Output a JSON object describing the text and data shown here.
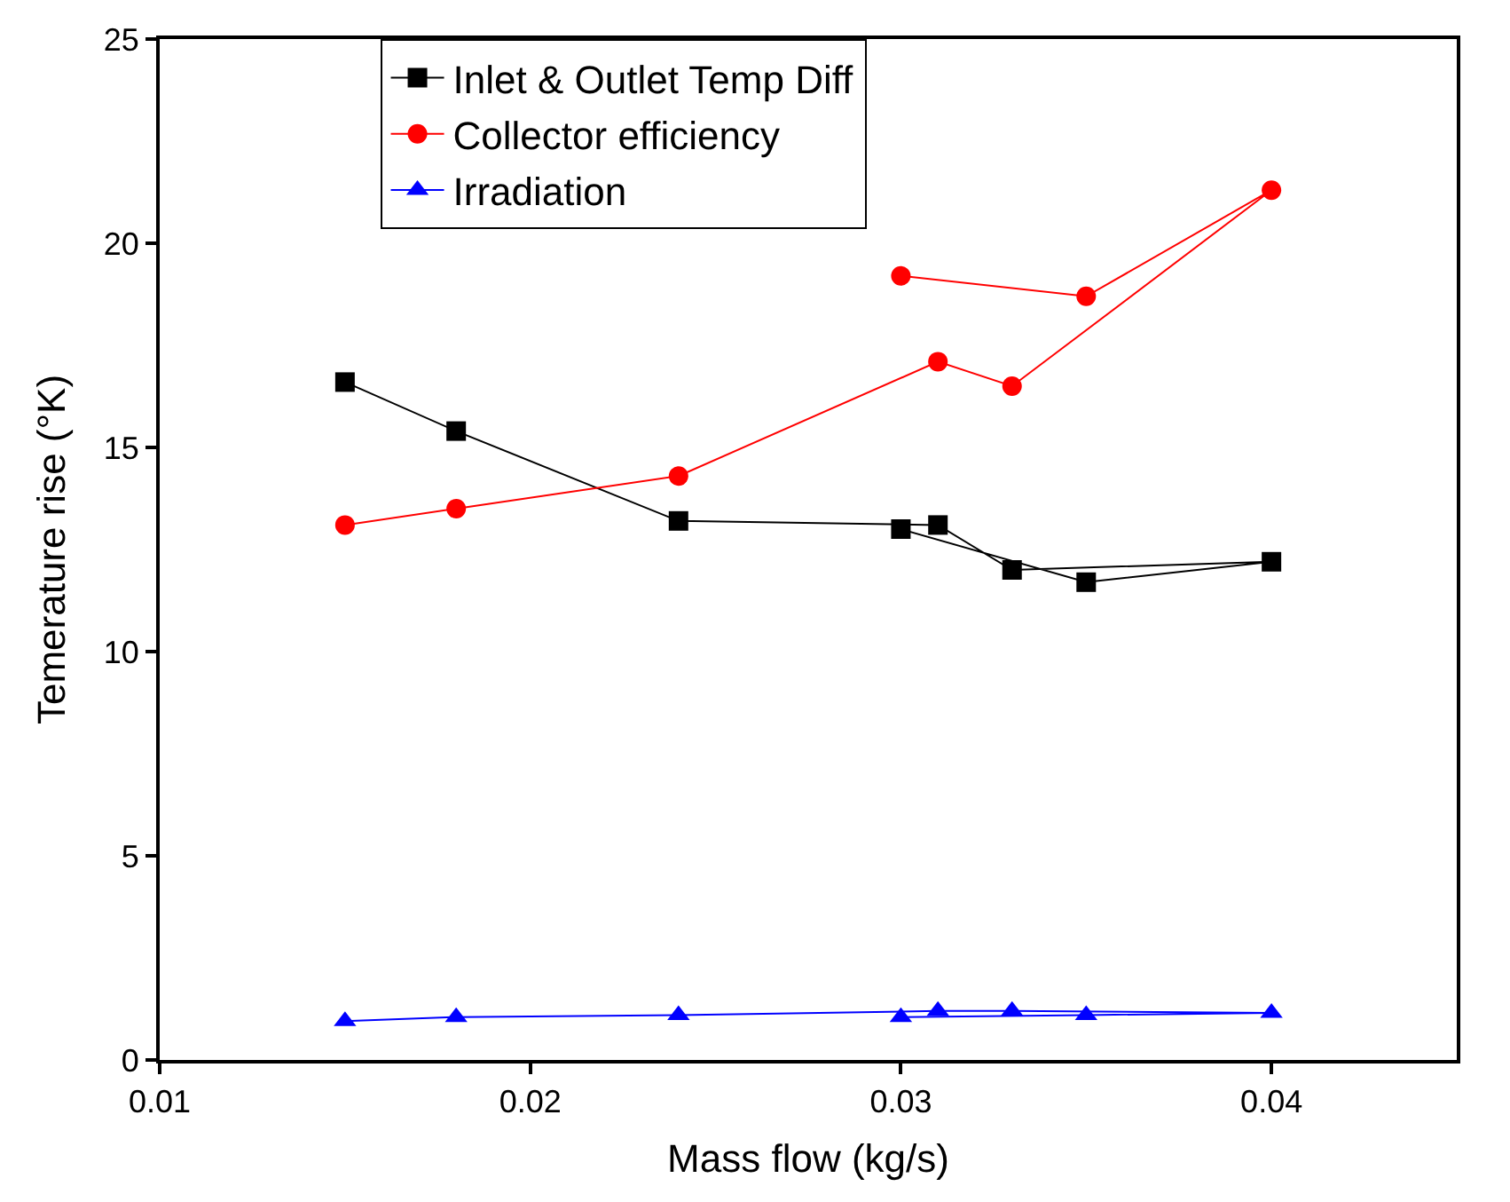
{
  "chart_data": {
    "type": "line",
    "xlabel": "Mass flow (kg/s)",
    "ylabel": "Temerature rise (°K)",
    "x": [
      0.015,
      0.018,
      0.024,
      0.031,
      0.033,
      0.04,
      0.035,
      0.03
    ],
    "series": [
      {
        "name": "Inlet & Outlet Temp Diff",
        "color": "#000000",
        "marker": "square",
        "values": [
          16.6,
          15.4,
          13.2,
          13.1,
          12.0,
          12.2,
          11.7,
          13.0
        ]
      },
      {
        "name": "Collector efficiency",
        "color": "#ff0000",
        "marker": "circle",
        "values": [
          13.1,
          13.5,
          14.3,
          17.1,
          16.5,
          21.3,
          18.7,
          19.2
        ]
      },
      {
        "name": "Irradiation",
        "color": "#0000ff",
        "marker": "triangle",
        "values": [
          0.95,
          1.05,
          1.1,
          1.2,
          1.2,
          1.15,
          1.1,
          1.05
        ]
      }
    ],
    "xlim": [
      0.01,
      0.045
    ],
    "xticks": [
      0.01,
      0.02,
      0.03,
      0.04
    ],
    "ylim": [
      0,
      25
    ],
    "yticks": [
      0,
      5,
      10,
      15,
      20,
      25
    ],
    "legend": "top left"
  }
}
